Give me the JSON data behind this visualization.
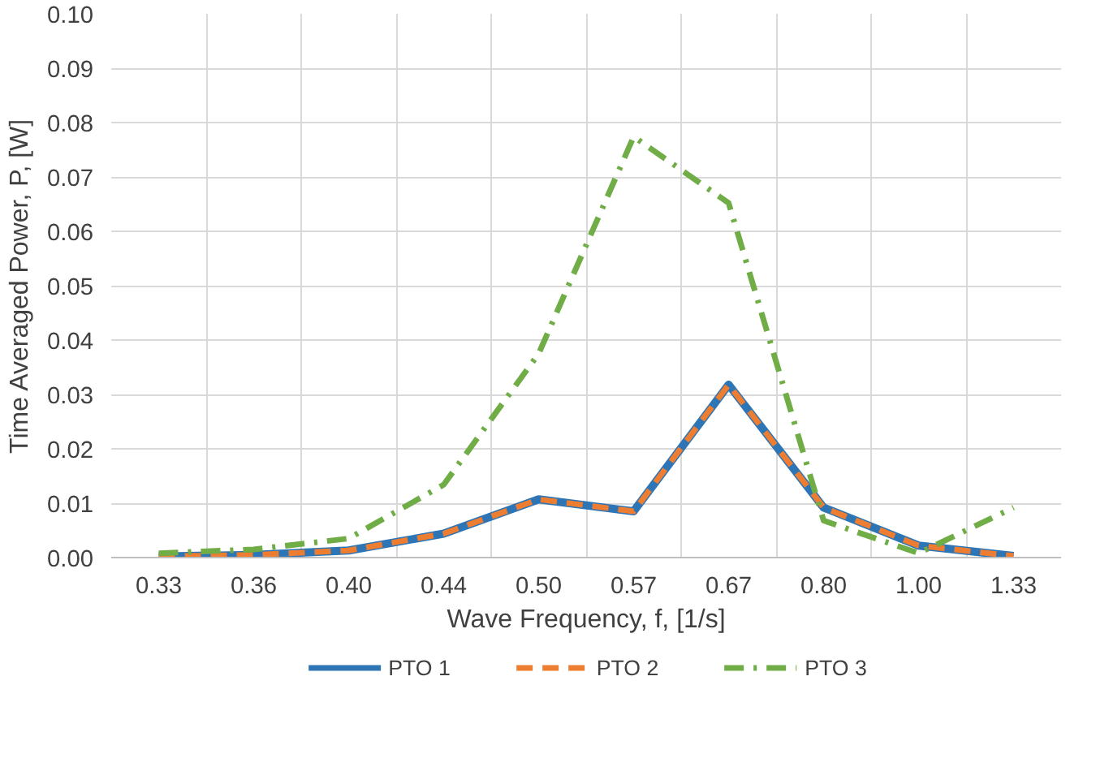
{
  "chart_data": {
    "type": "line",
    "xlabel": "Wave Frequency, f, [1/s]",
    "ylabel": "Time Averaged Power, P, [W]",
    "categories": [
      "0.33",
      "0.36",
      "0.40",
      "0.44",
      "0.50",
      "0.57",
      "0.67",
      "0.80",
      "1.00",
      "1.33"
    ],
    "series": [
      {
        "name": "PTO 1",
        "color": "#2e75b6",
        "line_style": "solid",
        "values": [
          0.0002,
          0.0005,
          0.0013,
          0.0044,
          0.0107,
          0.0085,
          0.0318,
          0.0092,
          0.0022,
          0.0003
        ]
      },
      {
        "name": "PTO 2",
        "color": "#ed7d31",
        "line_style": "dashed",
        "values": [
          0.0002,
          0.0005,
          0.0013,
          0.0044,
          0.0107,
          0.0085,
          0.0318,
          0.0092,
          0.0022,
          0.0003
        ]
      },
      {
        "name": "PTO 3",
        "color": "#70ad47",
        "line_style": "dashdot",
        "values": [
          0.0008,
          0.0015,
          0.0035,
          0.0134,
          0.0375,
          0.0774,
          0.0652,
          0.0068,
          0.0008,
          0.0092
        ]
      }
    ],
    "ylim": [
      0,
      0.1
    ],
    "yticks": [
      {
        "value": 0,
        "label": "0.00"
      },
      {
        "value": 0.01,
        "label": "0.01"
      },
      {
        "value": 0.02,
        "label": "0.02"
      },
      {
        "value": 0.03,
        "label": "0.03"
      },
      {
        "value": 0.04,
        "label": "0.04"
      },
      {
        "value": 0.05,
        "label": "0.05"
      },
      {
        "value": 0.06,
        "label": "0.06"
      },
      {
        "value": 0.07,
        "label": "0.07"
      },
      {
        "value": 0.08,
        "label": "0.08"
      },
      {
        "value": 0.09,
        "label": "0.09"
      },
      {
        "value": 0.1,
        "label": "0.10"
      }
    ],
    "grid": true,
    "legend": "bottom",
    "marker": "none"
  }
}
